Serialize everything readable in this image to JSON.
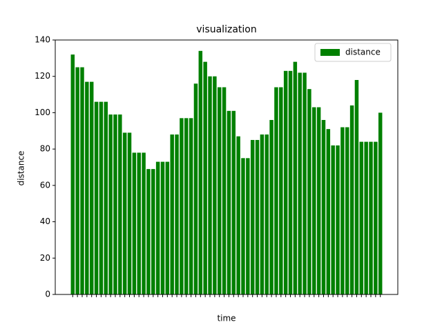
{
  "chart_data": {
    "type": "bar",
    "title": "visualization",
    "x_label": "time",
    "y_label": "distance",
    "categories": [
      null,
      null,
      null,
      null,
      null,
      null,
      null,
      null,
      null,
      null,
      null,
      null,
      null,
      null,
      null,
      null,
      null,
      null,
      null,
      null,
      null,
      null,
      null,
      null,
      null,
      null,
      null,
      null,
      null,
      null,
      null,
      null,
      null,
      null,
      null,
      null,
      null,
      null,
      null,
      null,
      null,
      null,
      null,
      null,
      null,
      null,
      null,
      null,
      null,
      null,
      null,
      null,
      null,
      null,
      null,
      null,
      null,
      null,
      null,
      null,
      null,
      null,
      null,
      null,
      null,
      null
    ],
    "series": [
      {
        "name": "distance",
        "color": "#008000",
        "values": [
          132,
          125,
          125,
          117,
          117,
          106,
          106,
          106,
          99,
          99,
          99,
          89,
          89,
          78,
          78,
          78,
          69,
          69,
          73,
          73,
          73,
          88,
          88,
          97,
          97,
          97,
          116,
          134,
          128,
          120,
          120,
          114,
          114,
          101,
          101,
          87,
          75,
          75,
          85,
          85,
          88,
          88,
          96,
          114,
          114,
          123,
          123,
          128,
          122,
          122,
          113,
          103,
          103,
          96,
          91,
          82,
          82,
          92,
          92,
          104,
          118,
          84,
          84,
          84,
          84,
          100
        ]
      }
    ],
    "ylim": [
      0,
      140
    ],
    "yticks": [
      0,
      20,
      40,
      60,
      80,
      100,
      120,
      140
    ],
    "legend": "upper right"
  }
}
